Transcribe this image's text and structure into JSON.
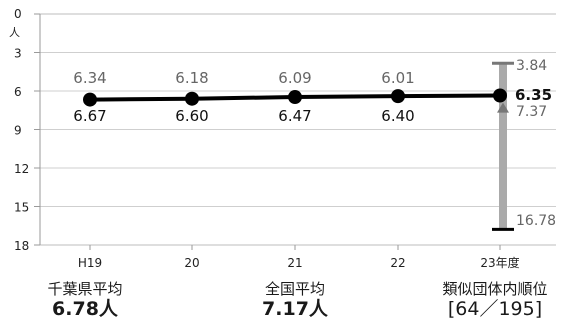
{
  "chart_data": {
    "type": "line",
    "y_unit": "人",
    "categories": [
      "H19",
      "20",
      "21",
      "22",
      "23年度"
    ],
    "ylim": [
      0,
      18
    ],
    "y_reversed": true,
    "y_ticks": [
      0,
      3,
      6,
      9,
      12,
      15,
      18
    ],
    "grid": true,
    "series": [
      {
        "values": [
          6.67,
          6.6,
          6.47,
          6.4,
          6.35
        ],
        "color": "#000000"
      },
      {
        "values": [
          6.34,
          6.18,
          6.09,
          6.01,
          null
        ],
        "color": "#666666",
        "labels_only": true
      }
    ],
    "range_bar": {
      "category": "23年度",
      "min": 3.84,
      "max": 16.78,
      "average": 7.37,
      "value": 6.35,
      "color": "#aaaaaa"
    },
    "point_labels": {
      "series_upper": [
        "6.34",
        "6.18",
        "6.09",
        "6.01"
      ],
      "series_lower": [
        "6.67",
        "6.60",
        "6.47",
        "6.40"
      ],
      "last": "6.35",
      "bar_top": "3.84",
      "bar_avg": "7.37",
      "bar_bottom": "16.78"
    }
  },
  "summary": {
    "prefecture": {
      "label": "千葉県平均",
      "value": "6.78人"
    },
    "national": {
      "label": "全国平均",
      "value": "7.17人"
    },
    "rank": {
      "label": "類似団体内順位",
      "value": "[64／195]"
    }
  }
}
